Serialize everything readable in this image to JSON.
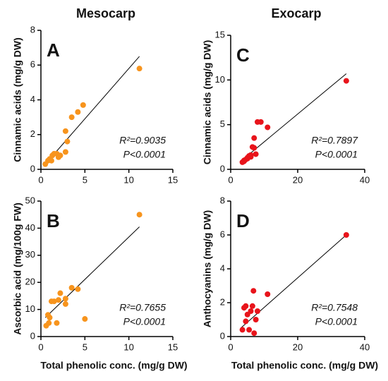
{
  "columns": [
    "Mesocarp",
    "Exocarp"
  ],
  "chart_data": [
    {
      "type": "scatter",
      "panel": "A",
      "ylabel": "Cinnamic acids (mg/g DW)",
      "color": "#f7941d",
      "x": [
        0.5,
        0.8,
        1.0,
        1.2,
        1.3,
        1.5,
        1.8,
        2.0,
        2.2,
        2.8,
        2.8,
        3.0,
        3.5,
        4.2,
        4.8,
        11.2
      ],
      "values": [
        0.3,
        0.5,
        0.6,
        0.5,
        0.8,
        0.9,
        0.9,
        0.7,
        0.8,
        1.0,
        2.2,
        1.6,
        3.0,
        3.3,
        3.7,
        5.8
      ],
      "fit": {
        "x": [
          0.5,
          11.2
        ],
        "y": [
          0.3,
          6.5
        ]
      },
      "r2_label": "R²=0.9035",
      "p_label": "P<0.0001",
      "xlim": [
        0,
        15
      ],
      "xticks": [
        0,
        5,
        10,
        15
      ],
      "ylim": [
        0,
        8
      ],
      "yticks": [
        0,
        2,
        4,
        6,
        8
      ]
    },
    {
      "type": "scatter",
      "panel": "C",
      "ylabel": "Cinnamic acids (mg/g DW)",
      "color": "#e8141b",
      "x": [
        3.5,
        4.0,
        4.0,
        4.5,
        5.0,
        5.0,
        5.5,
        6.0,
        6.0,
        6.5,
        7.0,
        7.0,
        7.5,
        8.0,
        9.0,
        11.0,
        34.5
      ],
      "values": [
        0.8,
        1.0,
        0.9,
        1.1,
        1.3,
        1.2,
        1.5,
        1.4,
        1.6,
        2.5,
        2.4,
        3.5,
        1.7,
        5.3,
        5.3,
        4.7,
        9.9
      ],
      "fit": {
        "x": [
          3,
          34.5
        ],
        "y": [
          0.9,
          10.7
        ]
      },
      "r2_label": "R²=0.7897",
      "p_label": "P<0.0001",
      "xlim": [
        0,
        40
      ],
      "xticks": [
        0,
        20,
        40
      ],
      "ylim": [
        0,
        15
      ],
      "yticks": [
        0,
        5,
        10,
        15
      ]
    },
    {
      "type": "scatter",
      "panel": "B",
      "ylabel": "Ascorbic acid (mg/100g FW)",
      "xlabel": "Total phenolic conc. (mg/g DW)",
      "color": "#f7941d",
      "x": [
        0.6,
        0.8,
        0.9,
        1.0,
        1.2,
        1.5,
        1.8,
        2.0,
        2.2,
        2.8,
        2.8,
        3.5,
        4.2,
        5.0,
        11.2
      ],
      "values": [
        4,
        8,
        5,
        7,
        13,
        13,
        5,
        13.5,
        16,
        12,
        14,
        18,
        17.5,
        6.5,
        45
      ],
      "fit": {
        "x": [
          0.5,
          11.2
        ],
        "y": [
          7,
          40.5
        ]
      },
      "r2_label": "R²=0.7655",
      "p_label": "P<0.0001",
      "xlim": [
        0,
        15
      ],
      "xticks": [
        0,
        5,
        10,
        15
      ],
      "ylim": [
        0,
        50
      ],
      "yticks": [
        0,
        10,
        20,
        30,
        40,
        50
      ]
    },
    {
      "type": "scatter",
      "panel": "D",
      "ylabel": "Anthocyanins (mg/g DW)",
      "xlabel": "Total phenolic conc. (mg/g DW)",
      "color": "#e8141b",
      "x": [
        3.5,
        4.0,
        4.5,
        4.5,
        5.0,
        5.5,
        6.0,
        6.5,
        6.8,
        7.0,
        7.5,
        8.0,
        11.0,
        34.5
      ],
      "values": [
        0.4,
        1.7,
        0.9,
        1.8,
        1.3,
        0.4,
        1.5,
        1.8,
        2.7,
        0.2,
        1.0,
        1.5,
        2.5,
        6.0
      ],
      "fit": {
        "x": [
          3,
          34.5
        ],
        "y": [
          0.5,
          6.0
        ]
      },
      "r2_label": "R²=0.7548",
      "p_label": "P<0.0001",
      "xlim": [
        0,
        40
      ],
      "xticks": [
        0,
        20,
        40
      ],
      "ylim": [
        0,
        8
      ],
      "yticks": [
        0,
        2,
        4,
        6,
        8
      ]
    }
  ]
}
